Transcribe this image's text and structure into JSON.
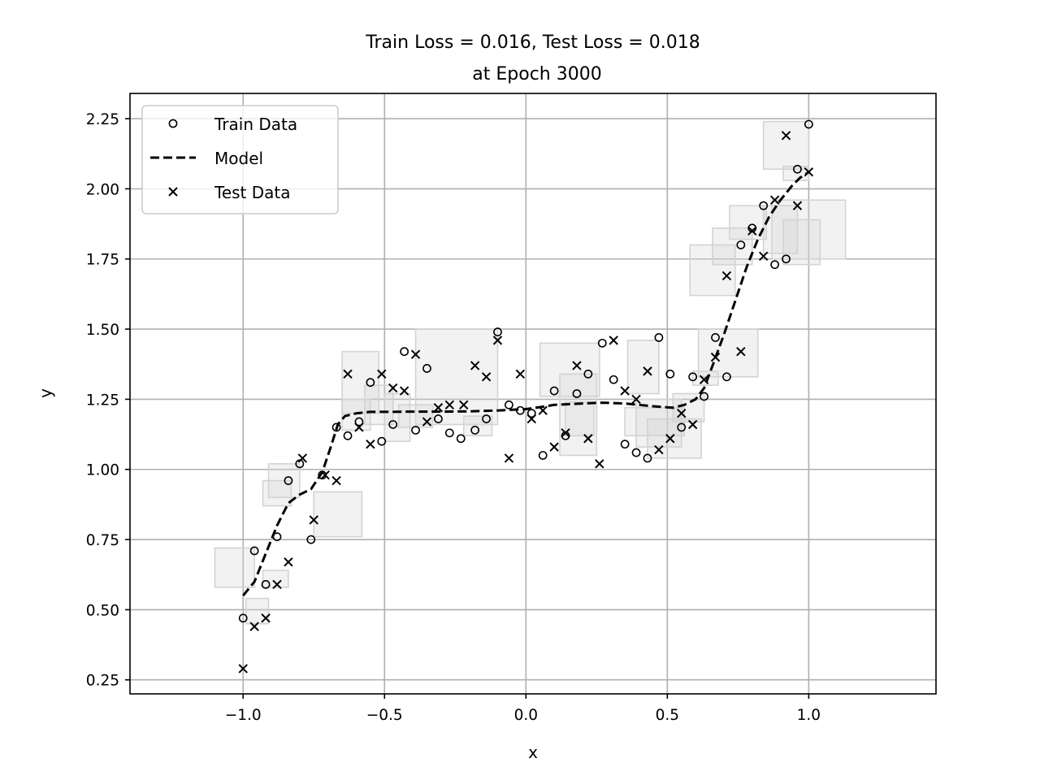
{
  "chart_data": {
    "type": "scatter",
    "title": "Train Loss = 0.016, Test Loss = 0.018",
    "subtitle": "at Epoch 3000",
    "xlabel": "x",
    "ylabel": "y",
    "xlim": [
      -1.4,
      1.45
    ],
    "ylim": [
      0.2,
      2.34
    ],
    "grid": true,
    "legend_position": "top-left",
    "colors": {
      "marker": "#000000",
      "box_fill": "#d3d3d3",
      "box_stroke": "#d3d3d3",
      "grid": "#b0b0b0"
    },
    "xticks": [
      {
        "value": -1.0,
        "label": "−1.0"
      },
      {
        "value": -0.5,
        "label": "−0.5"
      },
      {
        "value": 0.0,
        "label": "0.0"
      },
      {
        "value": 0.5,
        "label": "0.5"
      },
      {
        "value": 1.0,
        "label": "1.0"
      }
    ],
    "yticks": [
      {
        "value": 0.25,
        "label": "0.25"
      },
      {
        "value": 0.5,
        "label": "0.50"
      },
      {
        "value": 0.75,
        "label": "0.75"
      },
      {
        "value": 1.0,
        "label": "1.00"
      },
      {
        "value": 1.25,
        "label": "1.25"
      },
      {
        "value": 1.5,
        "label": "1.50"
      },
      {
        "value": 1.75,
        "label": "1.75"
      },
      {
        "value": 2.0,
        "label": "2.00"
      },
      {
        "value": 2.25,
        "label": "2.25"
      }
    ],
    "series": [
      {
        "name": "Train Data",
        "marker": "circle",
        "points": [
          [
            -1.0,
            0.47
          ],
          [
            -0.96,
            0.71
          ],
          [
            -0.92,
            0.59
          ],
          [
            -0.88,
            0.76
          ],
          [
            -0.84,
            0.96
          ],
          [
            -0.8,
            1.02
          ],
          [
            -0.76,
            0.75
          ],
          [
            -0.72,
            0.98
          ],
          [
            -0.67,
            1.15
          ],
          [
            -0.63,
            1.12
          ],
          [
            -0.59,
            1.17
          ],
          [
            -0.55,
            1.31
          ],
          [
            -0.51,
            1.1
          ],
          [
            -0.47,
            1.16
          ],
          [
            -0.43,
            1.42
          ],
          [
            -0.39,
            1.14
          ],
          [
            -0.35,
            1.36
          ],
          [
            -0.31,
            1.18
          ],
          [
            -0.27,
            1.13
          ],
          [
            -0.23,
            1.11
          ],
          [
            -0.18,
            1.14
          ],
          [
            -0.14,
            1.18
          ],
          [
            -0.1,
            1.49
          ],
          [
            -0.06,
            1.23
          ],
          [
            -0.02,
            1.21
          ],
          [
            0.02,
            1.2
          ],
          [
            0.06,
            1.05
          ],
          [
            0.1,
            1.28
          ],
          [
            0.14,
            1.12
          ],
          [
            0.18,
            1.27
          ],
          [
            0.22,
            1.34
          ],
          [
            0.27,
            1.45
          ],
          [
            0.31,
            1.32
          ],
          [
            0.35,
            1.09
          ],
          [
            0.39,
            1.06
          ],
          [
            0.43,
            1.04
          ],
          [
            0.47,
            1.47
          ],
          [
            0.51,
            1.34
          ],
          [
            0.55,
            1.15
          ],
          [
            0.59,
            1.33
          ],
          [
            0.63,
            1.26
          ],
          [
            0.67,
            1.47
          ],
          [
            0.71,
            1.33
          ],
          [
            0.76,
            1.8
          ],
          [
            0.8,
            1.86
          ],
          [
            0.84,
            1.94
          ],
          [
            0.88,
            1.73
          ],
          [
            0.92,
            1.75
          ],
          [
            0.96,
            2.07
          ],
          [
            1.0,
            2.23
          ]
        ]
      },
      {
        "name": "Model",
        "line_style": "dashed",
        "points": [
          [
            -1.0,
            0.55
          ],
          [
            -0.96,
            0.6
          ],
          [
            -0.92,
            0.7
          ],
          [
            -0.88,
            0.8
          ],
          [
            -0.84,
            0.88
          ],
          [
            -0.8,
            0.91
          ],
          [
            -0.76,
            0.93
          ],
          [
            -0.72,
            0.99
          ],
          [
            -0.69,
            1.08
          ],
          [
            -0.665,
            1.16
          ],
          [
            -0.64,
            1.19
          ],
          [
            -0.6,
            1.2
          ],
          [
            -0.55,
            1.205
          ],
          [
            -0.5,
            1.205
          ],
          [
            -0.4,
            1.206
          ],
          [
            -0.3,
            1.206
          ],
          [
            -0.2,
            1.207
          ],
          [
            -0.1,
            1.21
          ],
          [
            0.0,
            1.215
          ],
          [
            0.05,
            1.222
          ],
          [
            0.1,
            1.23
          ],
          [
            0.2,
            1.235
          ],
          [
            0.27,
            1.238
          ],
          [
            0.35,
            1.235
          ],
          [
            0.45,
            1.225
          ],
          [
            0.52,
            1.22
          ],
          [
            0.56,
            1.23
          ],
          [
            0.6,
            1.25
          ],
          [
            0.63,
            1.29
          ],
          [
            0.66,
            1.37
          ],
          [
            0.7,
            1.48
          ],
          [
            0.74,
            1.6
          ],
          [
            0.78,
            1.72
          ],
          [
            0.82,
            1.82
          ],
          [
            0.86,
            1.9
          ],
          [
            0.9,
            1.96
          ],
          [
            0.94,
            2.01
          ],
          [
            0.97,
            2.04
          ],
          [
            1.0,
            2.06
          ]
        ]
      },
      {
        "name": "Test Data",
        "marker": "x",
        "points": [
          [
            -1.0,
            0.29
          ],
          [
            -0.96,
            0.44
          ],
          [
            -0.92,
            0.47
          ],
          [
            -0.88,
            0.59
          ],
          [
            -0.84,
            0.67
          ],
          [
            -0.79,
            1.04
          ],
          [
            -0.75,
            0.82
          ],
          [
            -0.71,
            0.98
          ],
          [
            -0.67,
            0.96
          ],
          [
            -0.63,
            1.34
          ],
          [
            -0.59,
            1.15
          ],
          [
            -0.55,
            1.09
          ],
          [
            -0.51,
            1.34
          ],
          [
            -0.47,
            1.29
          ],
          [
            -0.43,
            1.28
          ],
          [
            -0.39,
            1.41
          ],
          [
            -0.35,
            1.17
          ],
          [
            -0.31,
            1.22
          ],
          [
            -0.27,
            1.23
          ],
          [
            -0.22,
            1.23
          ],
          [
            -0.18,
            1.37
          ],
          [
            -0.14,
            1.33
          ],
          [
            -0.1,
            1.46
          ],
          [
            -0.06,
            1.04
          ],
          [
            -0.02,
            1.34
          ],
          [
            0.02,
            1.18
          ],
          [
            0.06,
            1.21
          ],
          [
            0.1,
            1.08
          ],
          [
            0.14,
            1.13
          ],
          [
            0.18,
            1.37
          ],
          [
            0.22,
            1.11
          ],
          [
            0.26,
            1.02
          ],
          [
            0.31,
            1.46
          ],
          [
            0.35,
            1.28
          ],
          [
            0.39,
            1.25
          ],
          [
            0.43,
            1.35
          ],
          [
            0.47,
            1.07
          ],
          [
            0.51,
            1.11
          ],
          [
            0.55,
            1.2
          ],
          [
            0.59,
            1.16
          ],
          [
            0.63,
            1.32
          ],
          [
            0.67,
            1.4
          ],
          [
            0.71,
            1.69
          ],
          [
            0.76,
            1.42
          ],
          [
            0.8,
            1.85
          ],
          [
            0.84,
            1.76
          ],
          [
            0.88,
            1.96
          ],
          [
            0.92,
            2.19
          ],
          [
            0.96,
            1.94
          ],
          [
            1.0,
            2.06
          ]
        ]
      }
    ],
    "shaded_boxes": [
      [
        -1.1,
        -0.96,
        0.58,
        0.72
      ],
      [
        -0.99,
        -0.91,
        0.45,
        0.54
      ],
      [
        -0.93,
        -0.84,
        0.58,
        0.64
      ],
      [
        -0.93,
        -0.83,
        0.87,
        0.96
      ],
      [
        -0.91,
        -0.8,
        0.9,
        1.02
      ],
      [
        -0.75,
        -0.58,
        0.76,
        0.92
      ],
      [
        -0.65,
        -0.52,
        1.2,
        1.42
      ],
      [
        -0.65,
        -0.55,
        1.14,
        1.25
      ],
      [
        -0.57,
        -0.47,
        1.16,
        1.3
      ],
      [
        -0.5,
        -0.41,
        1.1,
        1.27
      ],
      [
        -0.45,
        -0.33,
        1.15,
        1.23
      ],
      [
        -0.39,
        -0.1,
        1.16,
        1.5
      ],
      [
        -0.22,
        -0.12,
        1.12,
        1.19
      ],
      [
        0.05,
        0.26,
        1.26,
        1.45
      ],
      [
        0.12,
        0.25,
        1.05,
        1.34
      ],
      [
        0.14,
        0.24,
        1.12,
        1.24
      ],
      [
        0.35,
        0.56,
        1.12,
        1.22
      ],
      [
        0.36,
        0.47,
        1.27,
        1.46
      ],
      [
        0.39,
        0.55,
        1.08,
        1.25
      ],
      [
        0.43,
        0.62,
        1.04,
        1.18
      ],
      [
        0.52,
        0.63,
        1.17,
        1.27
      ],
      [
        0.59,
        0.68,
        1.3,
        1.35
      ],
      [
        0.61,
        0.82,
        1.33,
        1.5
      ],
      [
        0.58,
        0.74,
        1.62,
        1.8
      ],
      [
        0.66,
        0.8,
        1.73,
        1.86
      ],
      [
        0.72,
        0.85,
        1.82,
        1.94
      ],
      [
        0.84,
        0.96,
        1.77,
        1.94
      ],
      [
        0.87,
        1.13,
        1.75,
        1.96
      ],
      [
        0.91,
        1.04,
        1.73,
        1.89
      ],
      [
        0.84,
        1.0,
        2.07,
        2.24
      ],
      [
        0.91,
        1.0,
        2.03,
        2.08
      ]
    ]
  }
}
